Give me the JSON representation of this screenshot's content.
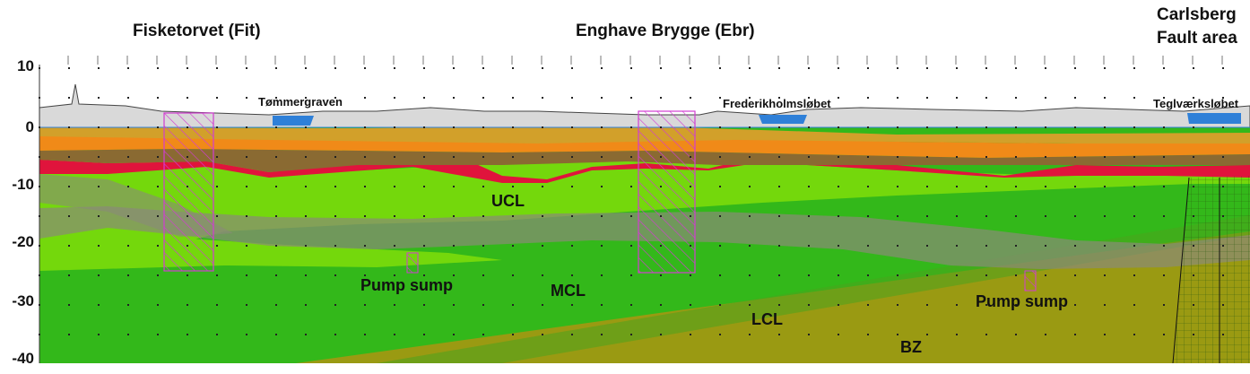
{
  "stations": {
    "fiskedorvet": "Fisketorvet (Fit)",
    "enghave": "Enghave Brygge (Ebr)",
    "carlsberg_line1": "Carlsberg",
    "carlsberg_line2": "Fault area"
  },
  "y_axis": {
    "tick_labels": [
      "10",
      "0",
      "-10",
      "-20",
      "-30",
      "-40"
    ]
  },
  "water_bodies": {
    "tommergraven": "Tømmergraven",
    "frederikholmslobet": "Frederikholmsløbet",
    "teglvaerkslobet": "Teglværksløbet"
  },
  "layers": {
    "ucl": "UCL",
    "mcl": "MCL",
    "lcl": "LCL",
    "bz": "BZ"
  },
  "features": {
    "pump_sump_1": "Pump sump",
    "pump_sump_2": "Pump sump"
  },
  "colors": {
    "sky_fill": "#d9d9d9",
    "water_blue": "#2f80d8",
    "fill_orange": "#f08a18",
    "fill_tan": "#d2a02a",
    "fill_brown": "#8a6a32",
    "red_layer": "#e0143c",
    "light_green": "#74d80c",
    "mid_green": "#33b81a",
    "olive": "#9a9a12",
    "station_box": "#d23cd2"
  }
}
